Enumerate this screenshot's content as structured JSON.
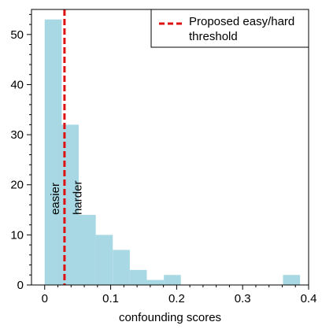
{
  "chart_data": {
    "type": "bar",
    "xlabel": "confounding scores",
    "ylabel": "",
    "xlim": [
      -0.02,
      0.4
    ],
    "ylim": [
      0,
      55
    ],
    "xticks": [
      0,
      0.1,
      0.2,
      0.3,
      0.4
    ],
    "xtick_labels": [
      "0",
      "0.1",
      "0.2",
      "0.3",
      "0.4"
    ],
    "yticks": [
      0,
      10,
      20,
      30,
      40,
      50
    ],
    "ytick_labels": [
      "0",
      "10",
      "20",
      "30",
      "40",
      "50"
    ],
    "bin_width": 0.0258,
    "bins": [
      {
        "x0": 0.0,
        "x1": 0.0258,
        "count": 53
      },
      {
        "x0": 0.0258,
        "x1": 0.0516,
        "count": 32
      },
      {
        "x0": 0.0516,
        "x1": 0.0774,
        "count": 14
      },
      {
        "x0": 0.0774,
        "x1": 0.1032,
        "count": 10
      },
      {
        "x0": 0.1032,
        "x1": 0.129,
        "count": 7
      },
      {
        "x0": 0.129,
        "x1": 0.1548,
        "count": 3
      },
      {
        "x0": 0.1548,
        "x1": 0.1806,
        "count": 1
      },
      {
        "x0": 0.1806,
        "x1": 0.2064,
        "count": 2
      },
      {
        "x0": 0.2064,
        "x1": 0.2322,
        "count": 0
      },
      {
        "x0": 0.2322,
        "x1": 0.258,
        "count": 0
      },
      {
        "x0": 0.258,
        "x1": 0.2838,
        "count": 0
      },
      {
        "x0": 0.2838,
        "x1": 0.3096,
        "count": 0
      },
      {
        "x0": 0.3096,
        "x1": 0.3354,
        "count": 0
      },
      {
        "x0": 0.3354,
        "x1": 0.3612,
        "count": 0
      },
      {
        "x0": 0.3612,
        "x1": 0.387,
        "count": 2
      }
    ],
    "threshold": {
      "x": 0.03,
      "label": "Proposed easy/hard threshold",
      "label_lines": [
        "Proposed easy/hard",
        "threshold"
      ],
      "color": "#dd1111",
      "style": "dashed"
    },
    "annotations": [
      {
        "text": "easier",
        "x": 0.016,
        "y": 14,
        "rotation": -90
      },
      {
        "text": "harder",
        "x": 0.05,
        "y": 14,
        "rotation": -90
      }
    ],
    "bar_color": "#a8d8e3",
    "legend_position": "top-right",
    "grid": false
  }
}
